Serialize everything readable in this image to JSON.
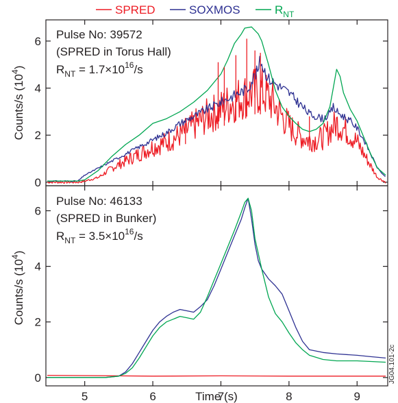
{
  "chart_data": [
    {
      "type": "line",
      "panel": "top",
      "ylabel": "Counts/s (10",
      "ylabel_exp": "4",
      "ylabel_close": ")",
      "xlim": [
        4.43,
        9.45
      ],
      "ylim": [
        -0.15,
        6.9
      ],
      "xticks": [
        5,
        6,
        7,
        8,
        9
      ],
      "yticks": [
        0,
        2,
        4,
        6
      ],
      "annotations": {
        "line1": "Pulse No: 39572",
        "line2": "(SPRED in Torus Hall)",
        "line3_prefix": "R",
        "line3_sub": "NT",
        "line3_mid": " = 1.7×10",
        "line3_sup": "16",
        "line3_suffix": "/s"
      },
      "series": [
        {
          "key": "rnt",
          "color": "#00a651",
          "x": [
            4.45,
            4.9,
            5.0,
            5.2,
            5.4,
            5.6,
            5.8,
            6.0,
            6.2,
            6.4,
            6.6,
            6.8,
            7.0,
            7.1,
            7.2,
            7.3,
            7.35,
            7.45,
            7.5,
            7.55,
            7.6,
            7.7,
            7.8,
            7.9,
            8.0,
            8.1,
            8.2,
            8.3,
            8.4,
            8.5,
            8.6,
            8.65,
            8.7,
            8.75,
            8.8,
            8.9,
            9.0,
            9.1,
            9.2,
            9.3,
            9.42
          ],
          "y": [
            0.05,
            0.05,
            0.1,
            0.5,
            1.1,
            1.6,
            2.0,
            2.5,
            2.7,
            3.0,
            3.4,
            3.9,
            4.6,
            5.2,
            5.9,
            6.3,
            6.55,
            6.6,
            6.45,
            6.3,
            6.0,
            5.0,
            3.9,
            3.2,
            2.8,
            2.5,
            2.25,
            2.15,
            2.25,
            2.5,
            3.2,
            4.0,
            4.8,
            4.5,
            3.8,
            3.1,
            2.6,
            1.9,
            1.2,
            0.6,
            0.3
          ]
        },
        {
          "key": "soxmos",
          "color": "#2e3192",
          "x": [
            4.45,
            4.9,
            5.0,
            5.2,
            5.4,
            5.6,
            5.8,
            6.0,
            6.2,
            6.4,
            6.6,
            6.8,
            7.0,
            7.1,
            7.2,
            7.3,
            7.4,
            7.45,
            7.5,
            7.55,
            7.58,
            7.62,
            7.7,
            7.8,
            7.9,
            8.0,
            8.1,
            8.2,
            8.3,
            8.4,
            8.5,
            8.6,
            8.65,
            8.7,
            8.8,
            8.9,
            9.0,
            9.1,
            9.2,
            9.3,
            9.42
          ],
          "y": [
            0.05,
            0.05,
            0.3,
            0.6,
            0.9,
            1.2,
            1.5,
            1.8,
            2.1,
            2.5,
            2.8,
            3.1,
            3.4,
            3.55,
            3.7,
            3.85,
            4.0,
            4.3,
            4.55,
            4.8,
            5.2,
            4.9,
            4.4,
            4.2,
            4.0,
            3.8,
            3.5,
            3.2,
            2.9,
            2.8,
            2.7,
            2.9,
            3.2,
            3.0,
            2.8,
            2.6,
            2.3,
            1.8,
            1.2,
            0.6,
            0.2
          ]
        },
        {
          "key": "spred",
          "color": "#ed1c24",
          "noisy": true,
          "x": [
            4.45,
            4.9,
            5.0,
            5.2,
            5.4,
            5.6,
            5.8,
            6.0,
            6.2,
            6.4,
            6.6,
            6.8,
            7.0,
            7.1,
            7.2,
            7.3,
            7.4,
            7.5,
            7.6,
            7.7,
            7.8,
            7.9,
            8.0,
            8.1,
            8.2,
            8.3,
            8.4,
            8.5,
            8.6,
            8.7,
            8.8,
            8.9,
            9.0,
            9.1,
            9.2,
            9.3,
            9.42
          ],
          "y": [
            0.0,
            0.0,
            0.05,
            0.2,
            0.6,
            0.9,
            1.2,
            1.5,
            1.7,
            2.0,
            2.4,
            2.8,
            3.1,
            3.3,
            3.45,
            3.6,
            3.75,
            3.85,
            3.85,
            3.6,
            3.2,
            2.8,
            2.4,
            2.1,
            1.9,
            1.8,
            1.8,
            1.9,
            2.2,
            2.5,
            2.3,
            2.0,
            1.7,
            1.2,
            0.7,
            0.2,
            0.0
          ]
        }
      ],
      "spikes": [
        {
          "x": 6.48,
          "y": 2.5
        },
        {
          "x": 6.96,
          "y": 5.1
        },
        {
          "x": 7.05,
          "y": 4.9
        },
        {
          "x": 7.22,
          "y": 5.4
        },
        {
          "x": 7.38,
          "y": 6.1
        },
        {
          "x": 7.5,
          "y": 5.6
        },
        {
          "x": 7.58,
          "y": 5.5
        },
        {
          "x": 8.3,
          "y": 2.8
        }
      ]
    },
    {
      "type": "line",
      "panel": "bottom",
      "xlabel": "Time (s)",
      "ylabel": "Counts/s (10",
      "ylabel_exp": "4",
      "ylabel_close": ")",
      "xlim": [
        4.43,
        9.45
      ],
      "ylim": [
        -0.3,
        6.9
      ],
      "xticks": [
        5,
        6,
        7,
        8,
        9
      ],
      "yticks": [
        0,
        2,
        4,
        6
      ],
      "annotations": {
        "line1": "Pulse No: 46133",
        "line2": "(SPRED in Bunker)",
        "line3_prefix": "R",
        "line3_sub": "NT",
        "line3_mid": " = 3.5×10",
        "line3_sup": "16",
        "line3_suffix": "/s"
      },
      "series": [
        {
          "key": "rnt",
          "color": "#00a651",
          "x": [
            4.45,
            5.0,
            5.3,
            5.5,
            5.6,
            5.7,
            5.8,
            5.9,
            6.0,
            6.1,
            6.2,
            6.3,
            6.4,
            6.5,
            6.6,
            6.7,
            6.8,
            6.9,
            7.0,
            7.1,
            7.2,
            7.3,
            7.35,
            7.4,
            7.45,
            7.5,
            7.6,
            7.7,
            7.8,
            7.9,
            8.0,
            8.1,
            8.2,
            8.3,
            8.5,
            8.7,
            9.0,
            9.42
          ],
          "y": [
            0.0,
            0.0,
            0.0,
            0.05,
            0.15,
            0.35,
            0.7,
            1.1,
            1.5,
            1.8,
            2.0,
            2.1,
            2.2,
            2.15,
            2.1,
            2.35,
            2.9,
            3.5,
            4.1,
            4.7,
            5.3,
            5.95,
            6.3,
            6.45,
            6.0,
            5.0,
            3.9,
            2.9,
            2.3,
            2.0,
            1.6,
            1.25,
            1.0,
            0.8,
            0.65,
            0.6,
            0.6,
            0.55
          ]
        },
        {
          "key": "soxmos",
          "color": "#2e3192",
          "x": [
            4.45,
            5.0,
            5.3,
            5.5,
            5.6,
            5.7,
            5.8,
            5.9,
            6.0,
            6.1,
            6.2,
            6.3,
            6.4,
            6.5,
            6.6,
            6.7,
            6.8,
            6.9,
            7.0,
            7.1,
            7.2,
            7.3,
            7.35,
            7.4,
            7.45,
            7.5,
            7.55,
            7.6,
            7.7,
            7.8,
            7.9,
            8.0,
            8.1,
            8.2,
            8.3,
            8.5,
            8.7,
            9.0,
            9.2,
            9.42
          ],
          "y": [
            0.0,
            0.0,
            0.0,
            0.05,
            0.2,
            0.5,
            0.9,
            1.3,
            1.7,
            2.0,
            2.2,
            2.35,
            2.45,
            2.4,
            2.35,
            2.55,
            2.8,
            3.3,
            3.9,
            4.5,
            5.1,
            5.7,
            6.1,
            6.45,
            5.7,
            4.8,
            4.2,
            3.9,
            3.55,
            3.3,
            3.0,
            2.4,
            1.8,
            1.3,
            1.0,
            0.9,
            0.85,
            0.8,
            0.75,
            0.7
          ]
        },
        {
          "key": "spred",
          "color": "#ed1c24",
          "x": [
            4.45,
            5.0,
            6.0,
            7.0,
            8.0,
            9.0,
            9.42
          ],
          "y": [
            0.08,
            0.07,
            0.05,
            0.06,
            0.05,
            0.05,
            0.05
          ]
        }
      ]
    }
  ],
  "legend": {
    "items": [
      {
        "key": "spred",
        "label": "SPRED",
        "color": "#ed1c24"
      },
      {
        "key": "soxmos",
        "label": "SOXMOS",
        "color": "#2e3192"
      },
      {
        "key": "rnt",
        "label": "R",
        "label_sub": "NT",
        "color": "#00a651"
      }
    ]
  },
  "side_tag": "JG04.101-2c"
}
